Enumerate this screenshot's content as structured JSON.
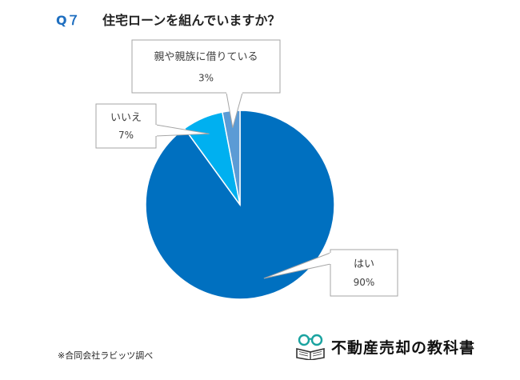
{
  "question": {
    "number": "Q７",
    "text": "住宅ローンを組んでいますか？"
  },
  "chart_data": {
    "type": "pie",
    "categories": [
      "はい",
      "いいえ",
      "親や親族に借りている"
    ],
    "values": [
      90,
      7,
      3
    ],
    "value_labels": [
      "90%",
      "7%",
      "3%"
    ],
    "colors": [
      "#0070c0",
      "#00b0f0",
      "#5b9bd5"
    ]
  },
  "footer": {
    "source": "※合同会社ラビッツ調べ",
    "logo_text": "不動産売却の教科書"
  }
}
